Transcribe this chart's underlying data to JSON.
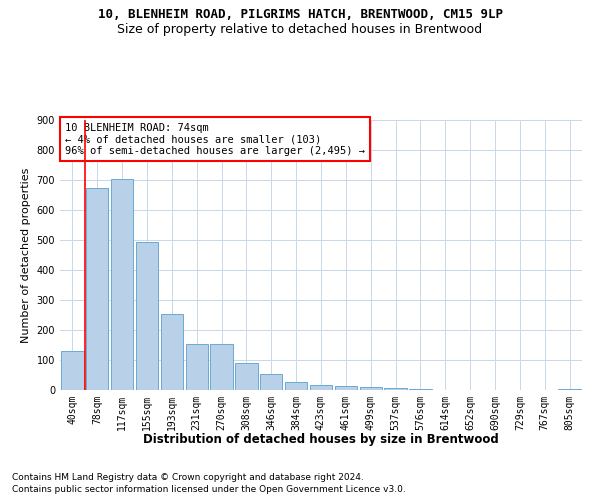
{
  "title_line1": "10, BLENHEIM ROAD, PILGRIMS HATCH, BRENTWOOD, CM15 9LP",
  "title_line2": "Size of property relative to detached houses in Brentwood",
  "xlabel": "Distribution of detached houses by size in Brentwood",
  "ylabel": "Number of detached properties",
  "categories": [
    "40sqm",
    "78sqm",
    "117sqm",
    "155sqm",
    "193sqm",
    "231sqm",
    "270sqm",
    "308sqm",
    "346sqm",
    "384sqm",
    "423sqm",
    "461sqm",
    "499sqm",
    "537sqm",
    "576sqm",
    "614sqm",
    "652sqm",
    "690sqm",
    "729sqm",
    "767sqm",
    "805sqm"
  ],
  "values": [
    130,
    675,
    705,
    493,
    252,
    153,
    153,
    90,
    55,
    27,
    18,
    15,
    10,
    7,
    2,
    0,
    0,
    0,
    0,
    0,
    4
  ],
  "bar_color": "#b8d0e8",
  "bar_edge_color": "#6aaad4",
  "annotation_text": "10 BLENHEIM ROAD: 74sqm\n← 4% of detached houses are smaller (103)\n96% of semi-detached houses are larger (2,495) →",
  "annotation_box_color": "white",
  "annotation_box_edge_color": "red",
  "vline_color": "red",
  "vline_x_bar_index": 1,
  "ylim": [
    0,
    900
  ],
  "yticks": [
    0,
    100,
    200,
    300,
    400,
    500,
    600,
    700,
    800,
    900
  ],
  "footer_line1": "Contains HM Land Registry data © Crown copyright and database right 2024.",
  "footer_line2": "Contains public sector information licensed under the Open Government Licence v3.0.",
  "bg_color": "#ffffff",
  "grid_color": "#c8d8ea",
  "title1_fontsize": 9,
  "title2_fontsize": 9,
  "ylabel_fontsize": 8,
  "xlabel_fontsize": 8.5,
  "tick_fontsize": 7,
  "footer_fontsize": 6.5,
  "annotation_fontsize": 7.5
}
